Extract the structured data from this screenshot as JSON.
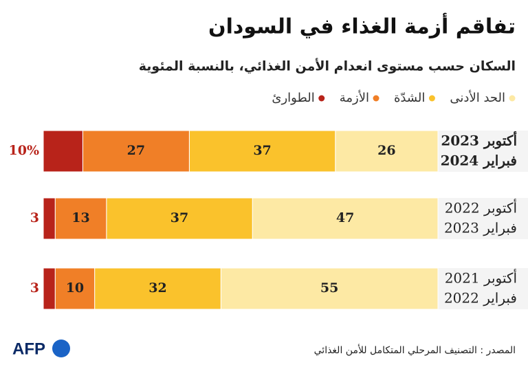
{
  "title": "تفاقم أزمة الغذاء في السودان",
  "subtitle": "السكان حسب مستوى انعدام الأمن الغذائي، بالنسبة المئوية",
  "source": "المصدر : التصنيف المرحلي المتكامل للأمن الغذائي",
  "logo": "AFP",
  "chart_data": {
    "type": "stacked-bar-horizontal",
    "categories": [
      [
        "أكتوبر 2023",
        "فبراير 2024"
      ],
      [
        "أكتوبر 2022",
        "فبراير 2023"
      ],
      [
        "أكتوبر 2021",
        "فبراير 2022"
      ]
    ],
    "xlim": [
      0,
      100
    ],
    "series": [
      {
        "name": "الحد الأدنى",
        "color": "#fde9a4",
        "values": [
          26,
          47,
          55
        ]
      },
      {
        "name": "الشدّة",
        "color": "#fac22c",
        "values": [
          37,
          37,
          32
        ]
      },
      {
        "name": "الأزمة",
        "color": "#f07f27",
        "values": [
          27,
          13,
          10
        ]
      },
      {
        "name": "الطوارئ",
        "color": "#b8231a",
        "values": [
          10,
          3,
          3
        ],
        "value_labels": [
          "10%",
          "3",
          "3"
        ]
      }
    ]
  }
}
